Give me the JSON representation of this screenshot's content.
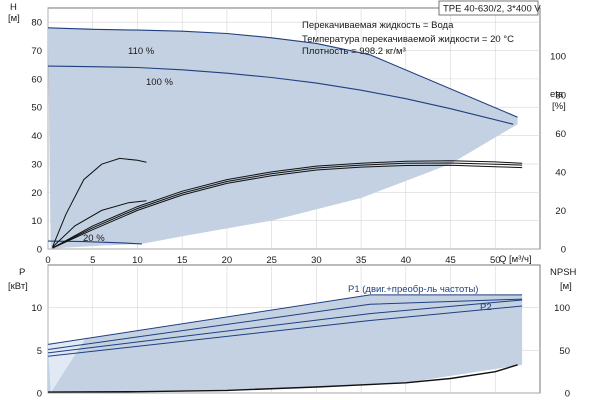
{
  "header": {
    "title": "TPE 40-630/2, 3*400 V",
    "info_lines": [
      "Перекачиваемая жидкость = Вода",
      "Температура перекачиваемой жидкости = 20 °C",
      "Плотность = 998.2 кг/м³"
    ]
  },
  "colors": {
    "envelope": "#c3d1e2",
    "envelope_light": "#e1eaf4",
    "curve": "#1f3f80",
    "dark_curve": "#111111",
    "grid": "#d6d6d6",
    "frame": "#555555"
  },
  "chart_data": [
    {
      "type": "line",
      "title": "TPE 40-630/2, 3*400 V",
      "xlabel": "Q [м³/ч]",
      "ylabel": "H [м]",
      "y2label": "eta [%]",
      "xlim": [
        0,
        55
      ],
      "ylim": [
        0,
        85
      ],
      "y2lim": [
        0,
        125
      ],
      "x_ticks": [
        0,
        5,
        10,
        15,
        20,
        25,
        30,
        35,
        40,
        45,
        50
      ],
      "y_ticks": [
        0,
        10,
        20,
        30,
        40,
        50,
        60,
        70,
        80
      ],
      "y2_ticks": [
        0,
        20,
        40,
        60,
        80,
        100
      ],
      "grid": true,
      "series": [
        {
          "name": "110 %",
          "x": [
            0,
            5,
            10,
            15,
            20,
            25,
            30,
            36,
            52.5
          ],
          "y": [
            78,
            77.5,
            77.2,
            76.8,
            76,
            74.5,
            72.5,
            68.5,
            46.5
          ]
        },
        {
          "name": "100 %",
          "x": [
            0,
            5,
            10,
            15,
            20,
            25,
            30,
            35,
            40,
            45,
            52
          ],
          "y": [
            64.5,
            64.3,
            64,
            63.2,
            62,
            60.5,
            58.5,
            56,
            53,
            49.5,
            44
          ]
        },
        {
          "name": "20 %",
          "x": [
            0,
            4,
            8,
            10.5
          ],
          "y": [
            2.8,
            2.6,
            2.2,
            1.8
          ]
        }
      ],
      "efficiency_curves": [
        {
          "x": [
            0.5,
            2,
            4,
            6,
            8,
            10,
            11
          ],
          "y": [
            1,
            18,
            36,
            44,
            47,
            46,
            45
          ]
        },
        {
          "x": [
            0.5,
            3,
            6,
            9,
            11
          ],
          "y": [
            1,
            12,
            20,
            24,
            25
          ]
        },
        {
          "x": [
            0.5,
            5,
            10,
            15,
            20,
            25,
            30,
            35,
            40,
            45,
            50,
            53
          ],
          "y": [
            0.5,
            12,
            22,
            30,
            36,
            40,
            43,
            44.5,
            45.5,
            45.8,
            45.2,
            44.5
          ]
        },
        {
          "x": [
            0.5,
            5,
            10,
            15,
            20,
            25,
            30,
            35,
            40,
            45,
            50,
            53
          ],
          "y": [
            0.5,
            11,
            21,
            29,
            35,
            39,
            42,
            43.5,
            44.5,
            44.6,
            44,
            43.5
          ]
        },
        {
          "x": [
            0.5,
            5,
            10,
            15,
            20,
            25,
            30,
            35,
            40,
            45,
            50,
            53
          ],
          "y": [
            0.5,
            10,
            20,
            28,
            34,
            38,
            41,
            42.5,
            43.3,
            43.4,
            42.7,
            42.2
          ]
        }
      ],
      "labels": [
        "110 %",
        "100 %",
        "20 %"
      ]
    },
    {
      "type": "line",
      "xlabel": "",
      "ylabel": "P [кВт]",
      "y2label": "NPSH [м]",
      "xlim": [
        0,
        55
      ],
      "ylim": [
        0,
        15
      ],
      "y2lim": [
        0,
        150
      ],
      "y_ticks": [
        0,
        5,
        10
      ],
      "y2_ticks": [
        0,
        50,
        100
      ],
      "grid": true,
      "series": [
        {
          "name": "P1 (двиг.+преобр-ль частоты)",
          "x": [
            0,
            36,
            53
          ],
          "y": [
            5.7,
            11.5,
            11.5
          ]
        },
        {
          "name": "",
          "x": [
            0,
            36,
            53
          ],
          "y": [
            5.1,
            10.4,
            11.0
          ]
        },
        {
          "name": "P2",
          "x": [
            0,
            36,
            53
          ],
          "y": [
            4.7,
            9.3,
            10.9
          ]
        },
        {
          "name": "",
          "x": [
            0,
            36,
            53
          ],
          "y": [
            4.3,
            8.5,
            10.2
          ]
        },
        {
          "name": "NPSH",
          "x": [
            0,
            10,
            20,
            30,
            40,
            45,
            50,
            52.5
          ],
          "y": [
            0.1,
            0.15,
            0.3,
            0.7,
            1.2,
            1.7,
            2.5,
            3.3
          ]
        }
      ],
      "labels": [
        "P1 (двиг.+преобр-ль частоты)",
        "P2"
      ]
    }
  ]
}
